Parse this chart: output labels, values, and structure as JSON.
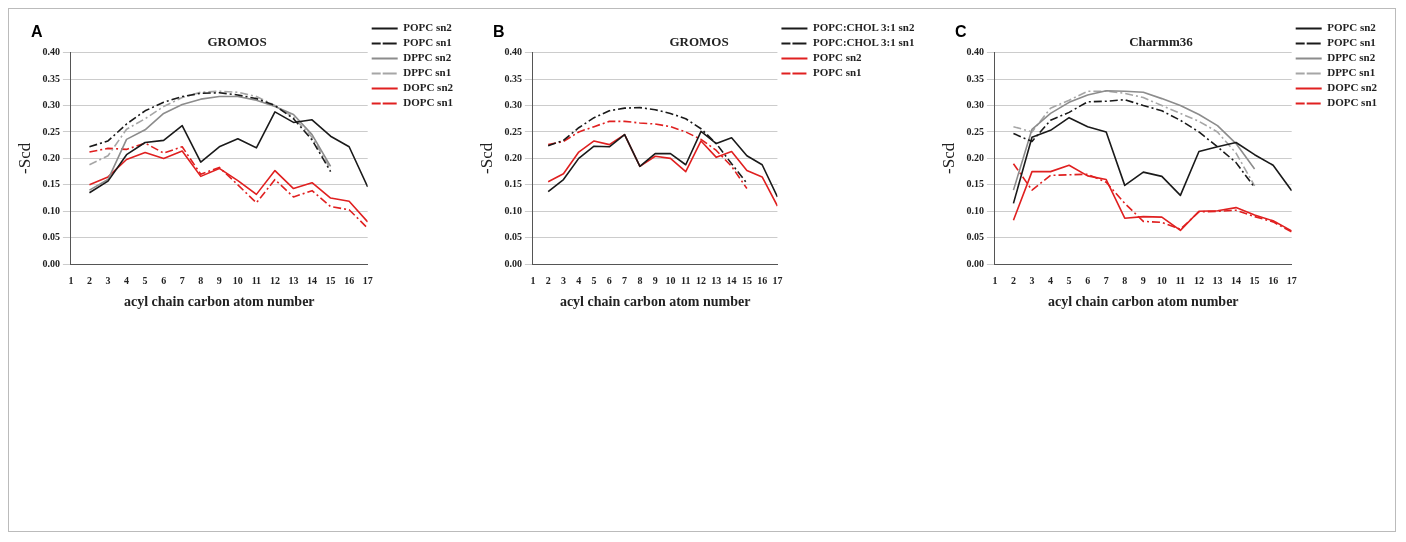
{
  "chart_data": [
    {
      "type": "line",
      "title": "GROMOS",
      "xlabel": "acyl chain carbon atom number",
      "ylabel": "-Scd",
      "annotations": [
        "A"
      ],
      "x": [
        2,
        3,
        4,
        5,
        6,
        7,
        8,
        9,
        10,
        11,
        12,
        13,
        14,
        15,
        16,
        17
      ],
      "xlim": [
        1,
        17
      ],
      "xticks": [
        1,
        2,
        3,
        4,
        5,
        6,
        7,
        8,
        9,
        10,
        11,
        12,
        13,
        14,
        15,
        16,
        17
      ],
      "ylim": [
        0,
        0.4
      ],
      "yticks": [
        {
          "value": 0,
          "label": "0.00"
        },
        {
          "value": 0.05,
          "label": "0.05"
        },
        {
          "value": 0.1,
          "label": "0.10"
        },
        {
          "value": 0.15,
          "label": "0.15"
        },
        {
          "value": 0.2,
          "label": "0.20"
        },
        {
          "value": 0.25,
          "label": "0.25"
        },
        {
          "value": 0.3,
          "label": "0.30"
        },
        {
          "value": 0.35,
          "label": "0.35"
        },
        {
          "value": 0.4,
          "label": "0.40"
        }
      ],
      "grid": "y",
      "legend": "top right",
      "marker": "none",
      "series": [
        {
          "name": "POPC sn2",
          "color": "#1a1a1a",
          "line_style": "solid",
          "values": [
            0.135,
            0.157,
            0.207,
            0.23,
            0.234,
            0.262,
            0.193,
            0.222,
            0.237,
            0.22,
            0.288,
            0.268,
            0.273,
            0.242,
            0.222,
            0.146
          ]
        },
        {
          "name": "POPC sn1",
          "color": "#1a1a1a",
          "line_style": "dashed",
          "values": [
            0.222,
            0.233,
            0.265,
            0.29,
            0.306,
            0.317,
            0.323,
            0.324,
            0.32,
            0.313,
            0.3,
            0.275,
            0.235,
            0.175,
            null,
            null
          ]
        },
        {
          "name": "DPPC sn2",
          "color": "#8c8c8c",
          "line_style": "solid",
          "values": [
            0.14,
            0.16,
            0.236,
            0.254,
            0.285,
            0.302,
            0.312,
            0.317,
            0.317,
            0.31,
            0.298,
            0.283,
            0.245,
            0.185,
            null,
            null
          ]
        },
        {
          "name": "DPPC sn1",
          "color": "#a6a6a6",
          "line_style": "dashed",
          "values": [
            0.188,
            0.205,
            0.255,
            0.275,
            0.298,
            0.315,
            0.325,
            0.327,
            0.325,
            0.317,
            0.3,
            0.278,
            0.24,
            0.18,
            null,
            null
          ]
        },
        {
          "name": "DOPC sn2",
          "color": "#e02020",
          "line_style": "solid",
          "values": [
            0.15,
            0.165,
            0.198,
            0.211,
            0.2,
            0.214,
            0.166,
            0.181,
            0.158,
            0.132,
            0.177,
            0.143,
            0.154,
            0.125,
            0.119,
            0.08
          ]
        },
        {
          "name": "DOPC sn1",
          "color": "#e02020",
          "line_style": "dashed",
          "values": [
            0.212,
            0.219,
            0.217,
            0.229,
            0.21,
            0.222,
            0.17,
            0.183,
            0.15,
            0.116,
            0.16,
            0.127,
            0.139,
            0.109,
            0.103,
            0.068
          ]
        }
      ]
    },
    {
      "type": "line",
      "title": "GROMOS",
      "xlabel": "acyl chain carbon atom number",
      "ylabel": "-Scd",
      "annotations": [
        "B"
      ],
      "x": [
        2,
        3,
        4,
        5,
        6,
        7,
        8,
        9,
        10,
        11,
        12,
        13,
        14,
        15,
        16,
        17
      ],
      "xlim": [
        1,
        17
      ],
      "xticks": [
        1,
        2,
        3,
        4,
        5,
        6,
        7,
        8,
        9,
        10,
        11,
        12,
        13,
        14,
        15,
        16,
        17
      ],
      "ylim": [
        0,
        0.4
      ],
      "yticks": [
        {
          "value": 0,
          "label": "0.00"
        },
        {
          "value": 0.05,
          "label": "0.05"
        },
        {
          "value": 0.1,
          "label": "0.10"
        },
        {
          "value": 0.15,
          "label": "0.15"
        },
        {
          "value": 0.2,
          "label": "0.20"
        },
        {
          "value": 0.25,
          "label": "0.25"
        },
        {
          "value": 0.3,
          "label": "0.30"
        },
        {
          "value": 0.35,
          "label": "0.35"
        },
        {
          "value": 0.4,
          "label": "0.40"
        }
      ],
      "grid": "y",
      "legend": "top right",
      "marker": "none",
      "series": [
        {
          "name": "POPC:CHOL 3:1 sn2",
          "color": "#1a1a1a",
          "line_style": "solid",
          "values": [
            0.137,
            0.16,
            0.2,
            0.223,
            0.222,
            0.245,
            0.185,
            0.209,
            0.209,
            0.188,
            0.251,
            0.228,
            0.239,
            0.205,
            0.188,
            0.127
          ]
        },
        {
          "name": "POPC:CHOL 3:1 sn1",
          "color": "#1a1a1a",
          "line_style": "dashed",
          "values": [
            0.224,
            0.234,
            0.258,
            0.277,
            0.29,
            0.295,
            0.296,
            0.292,
            0.285,
            0.275,
            0.256,
            0.228,
            0.19,
            0.153,
            null,
            null
          ]
        },
        {
          "name": "POPC sn2",
          "color": "#e02020",
          "line_style": "solid",
          "values": [
            0.156,
            0.171,
            0.212,
            0.233,
            0.226,
            0.245,
            0.185,
            0.204,
            0.2,
            0.175,
            0.233,
            0.202,
            0.213,
            0.177,
            0.165,
            0.11
          ]
        },
        {
          "name": "POPC sn1",
          "color": "#e02020",
          "line_style": "dashed",
          "values": [
            0.226,
            0.232,
            0.25,
            0.26,
            0.27,
            0.27,
            0.267,
            0.265,
            0.26,
            0.25,
            0.236,
            0.215,
            0.185,
            0.143,
            null,
            null
          ]
        }
      ]
    },
    {
      "type": "line",
      "title": "Charmm36",
      "xlabel": "acyl chain carbon atom number",
      "ylabel": "-Scd",
      "annotations": [
        "C"
      ],
      "x": [
        2,
        3,
        4,
        5,
        6,
        7,
        8,
        9,
        10,
        11,
        12,
        13,
        14,
        15,
        16,
        17
      ],
      "xlim": [
        1,
        17
      ],
      "xticks": [
        1,
        2,
        3,
        4,
        5,
        6,
        7,
        8,
        9,
        10,
        11,
        12,
        13,
        14,
        15,
        16,
        17
      ],
      "ylim": [
        0,
        0.4
      ],
      "yticks": [
        {
          "value": 0,
          "label": "0.00"
        },
        {
          "value": 0.05,
          "label": "0.05"
        },
        {
          "value": 0.1,
          "label": "0.10"
        },
        {
          "value": 0.15,
          "label": "0.15"
        },
        {
          "value": 0.2,
          "label": "0.20"
        },
        {
          "value": 0.25,
          "label": "0.25"
        },
        {
          "value": 0.3,
          "label": "0.30"
        },
        {
          "value": 0.35,
          "label": "0.35"
        },
        {
          "value": 0.4,
          "label": "0.40"
        }
      ],
      "grid": "y",
      "legend": "top right",
      "marker": "none",
      "series": [
        {
          "name": "POPC sn2",
          "color": "#1a1a1a",
          "line_style": "solid",
          "values": [
            0.115,
            0.24,
            0.253,
            0.277,
            0.26,
            0.25,
            0.149,
            0.174,
            0.166,
            0.13,
            0.213,
            0.222,
            0.23,
            0.207,
            0.187,
            0.139
          ]
        },
        {
          "name": "POPC sn1",
          "color": "#1a1a1a",
          "line_style": "dashed",
          "values": [
            0.247,
            0.232,
            0.272,
            0.287,
            0.307,
            0.308,
            0.311,
            0.3,
            0.29,
            0.272,
            0.25,
            0.222,
            0.192,
            0.145,
            null,
            null
          ]
        },
        {
          "name": "DPPC sn2",
          "color": "#8c8c8c",
          "line_style": "solid",
          "values": [
            0.14,
            0.255,
            0.285,
            0.306,
            0.32,
            0.328,
            0.327,
            0.325,
            0.313,
            0.3,
            0.283,
            0.262,
            0.228,
            0.18,
            null,
            null
          ]
        },
        {
          "name": "DPPC sn1",
          "color": "#a6a6a6",
          "line_style": "dashed",
          "values": [
            0.26,
            0.25,
            0.295,
            0.31,
            0.327,
            0.327,
            0.323,
            0.315,
            0.3,
            0.285,
            0.27,
            0.25,
            0.21,
            0.148,
            null,
            null
          ]
        },
        {
          "name": "DOPC sn2",
          "color": "#e02020",
          "line_style": "solid",
          "values": [
            0.083,
            0.175,
            0.175,
            0.187,
            0.167,
            0.16,
            0.087,
            0.09,
            0.089,
            0.064,
            0.1,
            0.101,
            0.107,
            0.093,
            0.082,
            0.063
          ]
        },
        {
          "name": "DOPC sn1",
          "color": "#e02020",
          "line_style": "dashed",
          "values": [
            0.19,
            0.14,
            0.168,
            0.169,
            0.17,
            0.155,
            0.115,
            0.081,
            0.079,
            0.066,
            0.099,
            0.1,
            0.102,
            0.09,
            0.08,
            0.061
          ]
        }
      ]
    }
  ]
}
